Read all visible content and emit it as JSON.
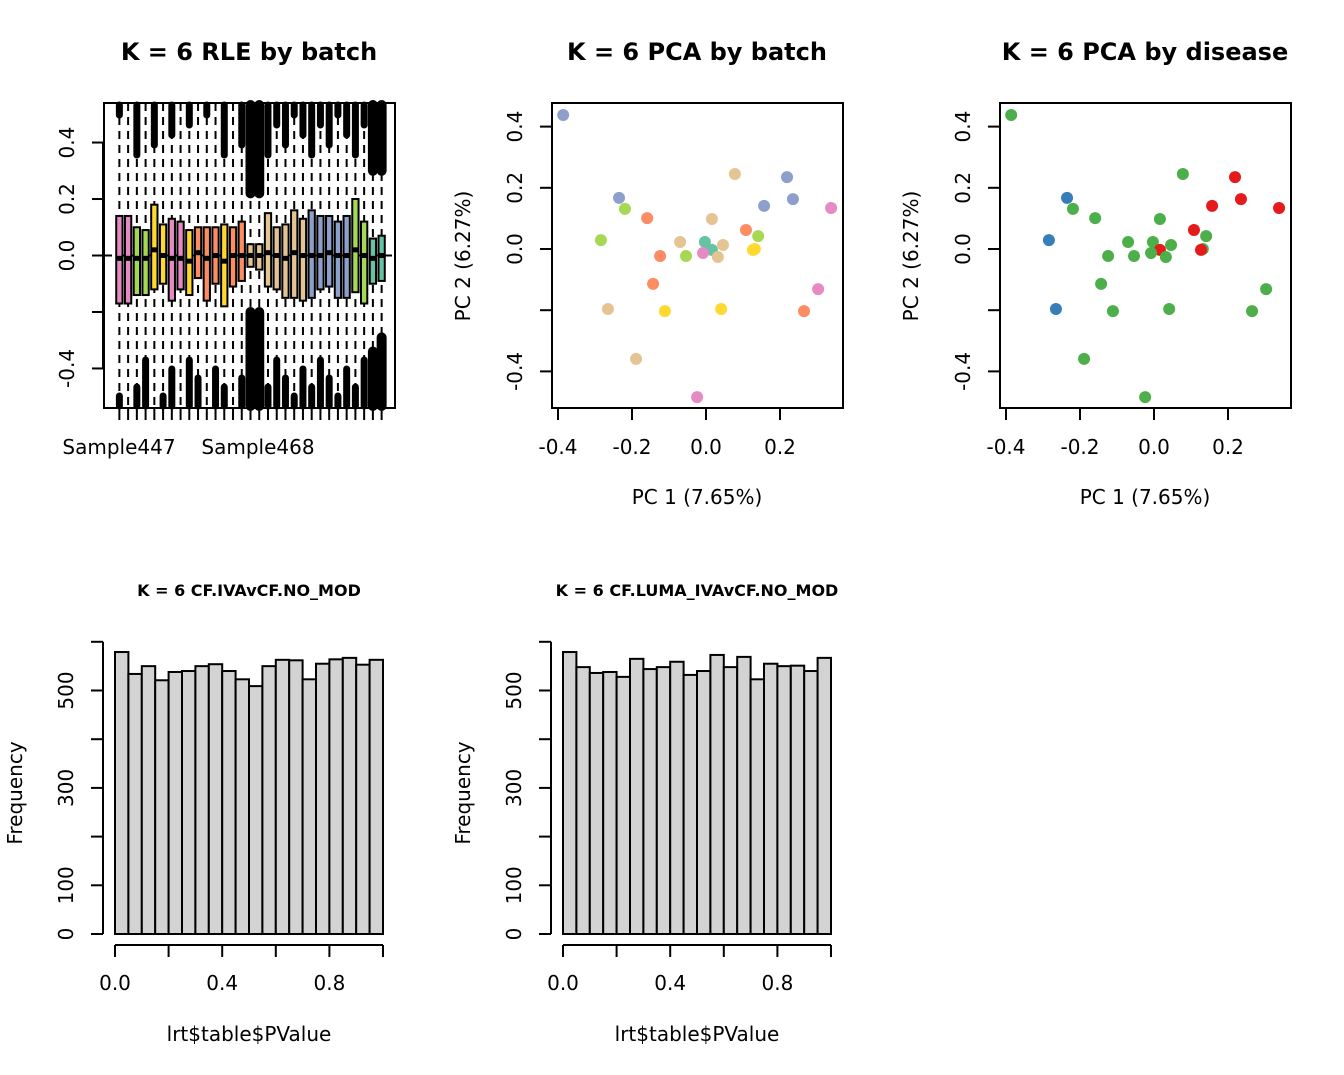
{
  "chart_data": [
    {
      "type": "boxplot",
      "title": "K = 6 RLE by batch",
      "xlabel": "",
      "ylabel": "",
      "ylim": [
        -0.54,
        0.54
      ],
      "yticks": [
        -0.4,
        -0.2,
        0.0,
        0.2,
        0.4
      ],
      "ytick_labels": [
        "-0.4",
        "",
        "0.0",
        "0.2",
        "0.4"
      ],
      "xtick_labels_shown": [
        "Sample447",
        "Sample468"
      ],
      "grid": false,
      "reference_line": 0.0,
      "boxes": [
        {
          "batch": "pink",
          "q1": -0.17,
          "median": -0.01,
          "q3": 0.14
        },
        {
          "batch": "pink",
          "q1": -0.17,
          "median": -0.01,
          "q3": 0.14
        },
        {
          "batch": "green",
          "q1": -0.14,
          "median": -0.01,
          "q3": 0.1
        },
        {
          "batch": "green",
          "q1": -0.14,
          "median": -0.01,
          "q3": 0.09
        },
        {
          "batch": "yellow",
          "q1": -0.12,
          "median": 0.02,
          "q3": 0.18
        },
        {
          "batch": "yellow",
          "q1": -0.1,
          "median": 0.0,
          "q3": 0.11
        },
        {
          "batch": "pink",
          "q1": -0.16,
          "median": -0.01,
          "q3": 0.13
        },
        {
          "batch": "pink",
          "q1": -0.12,
          "median": -0.01,
          "q3": 0.12
        },
        {
          "batch": "yellow",
          "q1": -0.14,
          "median": -0.02,
          "q3": 0.09
        },
        {
          "batch": "orange",
          "q1": -0.08,
          "median": 0.01,
          "q3": 0.1
        },
        {
          "batch": "orange",
          "q1": -0.16,
          "median": -0.01,
          "q3": 0.1
        },
        {
          "batch": "orange",
          "q1": -0.1,
          "median": 0.0,
          "q3": 0.1
        },
        {
          "batch": "yellow",
          "q1": -0.18,
          "median": -0.02,
          "q3": 0.11
        },
        {
          "batch": "orange",
          "q1": -0.11,
          "median": 0.0,
          "q3": 0.1
        },
        {
          "batch": "orange",
          "q1": -0.09,
          "median": 0.0,
          "q3": 0.12
        },
        {
          "batch": "tan",
          "q1": -0.04,
          "median": 0.0,
          "q3": 0.04
        },
        {
          "batch": "tan",
          "q1": -0.05,
          "median": 0.0,
          "q3": 0.04
        },
        {
          "batch": "tan",
          "q1": -0.11,
          "median": 0.01,
          "q3": 0.15
        },
        {
          "batch": "tan",
          "q1": -0.12,
          "median": 0.0,
          "q3": 0.1
        },
        {
          "batch": "tan",
          "q1": -0.15,
          "median": -0.01,
          "q3": 0.11
        },
        {
          "batch": "tan",
          "q1": -0.15,
          "median": 0.01,
          "q3": 0.16
        },
        {
          "batch": "tan",
          "q1": -0.16,
          "median": 0.0,
          "q3": 0.13
        },
        {
          "batch": "blue",
          "q1": -0.15,
          "median": 0.0,
          "q3": 0.16
        },
        {
          "batch": "blue",
          "q1": -0.12,
          "median": 0.0,
          "q3": 0.14
        },
        {
          "batch": "blue",
          "q1": -0.11,
          "median": 0.01,
          "q3": 0.14
        },
        {
          "batch": "blue",
          "q1": -0.15,
          "median": 0.0,
          "q3": 0.12
        },
        {
          "batch": "blue",
          "q1": -0.15,
          "median": 0.0,
          "q3": 0.14
        },
        {
          "batch": "green",
          "q1": -0.13,
          "median": 0.02,
          "q3": 0.2
        },
        {
          "batch": "green",
          "q1": -0.17,
          "median": 0.0,
          "q3": 0.12
        },
        {
          "batch": "teal",
          "q1": -0.1,
          "median": -0.01,
          "q3": 0.06
        },
        {
          "batch": "teal",
          "q1": -0.09,
          "median": 0.0,
          "q3": 0.07
        }
      ]
    },
    {
      "type": "scatter",
      "title": "K = 6 PCA by batch",
      "xlabel": "PC 1 (7.65%)",
      "ylabel": "PC 2 (6.27%)",
      "xlim": [
        -0.42,
        0.37
      ],
      "ylim": [
        -0.52,
        0.48
      ],
      "xticks": [
        -0.4,
        -0.2,
        0.0,
        0.2
      ],
      "yticks": [
        -0.4,
        -0.2,
        0.0,
        0.2,
        0.4
      ],
      "ytick_labels": [
        "-0.4",
        "",
        "0.0",
        "0.2",
        "0.4"
      ],
      "color_by": "batch"
    },
    {
      "type": "scatter",
      "title": "K = 6 PCA by disease",
      "xlabel": "PC 1 (7.65%)",
      "ylabel": "PC 2 (6.27%)",
      "xlim": [
        -0.42,
        0.37
      ],
      "ylim": [
        -0.52,
        0.48
      ],
      "xticks": [
        -0.4,
        -0.2,
        0.0,
        0.2
      ],
      "yticks": [
        -0.4,
        -0.2,
        0.0,
        0.2,
        0.4
      ],
      "ytick_labels": [
        "-0.4",
        "",
        "0.0",
        "0.2",
        "0.4"
      ],
      "color_by": "disease"
    },
    {
      "type": "bar",
      "subtype": "histogram",
      "title": "K = 6 CF.IVAvCF.NO_MOD",
      "xlabel": "lrt$table$PValue",
      "ylabel": "Frequency",
      "xlim": [
        0,
        1
      ],
      "ylim": [
        0,
        600
      ],
      "xticks": [
        0.0,
        0.2,
        0.4,
        0.6,
        0.8,
        1.0
      ],
      "xtick_labels": [
        "0.0",
        "",
        "0.4",
        "",
        "0.8",
        ""
      ],
      "yticks": [
        0,
        100,
        200,
        300,
        400,
        500,
        600
      ],
      "ytick_labels": [
        "0",
        "100",
        "",
        "300",
        "",
        "500",
        ""
      ],
      "bin_width": 0.05,
      "values": [
        579,
        534,
        550,
        521,
        538,
        540,
        550,
        554,
        540,
        523,
        509,
        550,
        563,
        562,
        523,
        555,
        564,
        567,
        553,
        563
      ]
    },
    {
      "type": "bar",
      "subtype": "histogram",
      "title": "K = 6 CF.LUMA_IVAvCF.NO_MOD",
      "xlabel": "lrt$table$PValue",
      "ylabel": "Frequency",
      "xlim": [
        0,
        1
      ],
      "ylim": [
        0,
        600
      ],
      "xticks": [
        0.0,
        0.2,
        0.4,
        0.6,
        0.8,
        1.0
      ],
      "xtick_labels": [
        "0.0",
        "",
        "0.4",
        "",
        "0.8",
        ""
      ],
      "yticks": [
        0,
        100,
        200,
        300,
        400,
        500,
        600
      ],
      "ytick_labels": [
        "0",
        "100",
        "",
        "300",
        "",
        "500",
        ""
      ],
      "bin_width": 0.05,
      "values": [
        579,
        548,
        536,
        538,
        528,
        565,
        544,
        548,
        559,
        532,
        540,
        573,
        548,
        569,
        523,
        555,
        550,
        551,
        540,
        567
      ]
    }
  ],
  "samples": [
    {
      "pc1": -0.386,
      "pc2": 0.438,
      "batch": "blue",
      "disease": "green"
    },
    {
      "pc1": -0.235,
      "pc2": 0.167,
      "batch": "blue",
      "disease": "blue"
    },
    {
      "pc1": -0.219,
      "pc2": 0.131,
      "batch": "green",
      "disease": "green"
    },
    {
      "pc1": -0.159,
      "pc2": 0.101,
      "batch": "orange",
      "disease": "green"
    },
    {
      "pc1": -0.284,
      "pc2": 0.029,
      "batch": "green",
      "disease": "blue"
    },
    {
      "pc1": -0.124,
      "pc2": -0.023,
      "batch": "orange",
      "disease": "green"
    },
    {
      "pc1": -0.054,
      "pc2": -0.023,
      "batch": "green",
      "disease": "green"
    },
    {
      "pc1": -0.07,
      "pc2": 0.023,
      "batch": "tan",
      "disease": "green"
    },
    {
      "pc1": -0.003,
      "pc2": 0.023,
      "batch": "teal",
      "disease": "green"
    },
    {
      "pc1": 0.016,
      "pc2": -0.003,
      "batch": "teal",
      "disease": "red"
    },
    {
      "pc1": -0.008,
      "pc2": -0.013,
      "batch": "pink",
      "disease": "green"
    },
    {
      "pc1": 0.032,
      "pc2": -0.026,
      "batch": "tan",
      "disease": "green"
    },
    {
      "pc1": 0.046,
      "pc2": 0.013,
      "batch": "tan",
      "disease": "green"
    },
    {
      "pc1": 0.016,
      "pc2": 0.098,
      "batch": "tan",
      "disease": "green"
    },
    {
      "pc1": 0.078,
      "pc2": 0.245,
      "batch": "tan",
      "disease": "green"
    },
    {
      "pc1": 0.108,
      "pc2": 0.062,
      "batch": "orange",
      "disease": "red"
    },
    {
      "pc1": 0.141,
      "pc2": 0.042,
      "batch": "green",
      "disease": "green"
    },
    {
      "pc1": 0.132,
      "pc2": 0.0,
      "batch": "yellow",
      "disease": "green"
    },
    {
      "pc1": 0.127,
      "pc2": -0.003,
      "batch": "yellow",
      "disease": "red"
    },
    {
      "pc1": 0.157,
      "pc2": 0.141,
      "batch": "blue",
      "disease": "red"
    },
    {
      "pc1": 0.219,
      "pc2": 0.235,
      "batch": "blue",
      "disease": "red"
    },
    {
      "pc1": 0.235,
      "pc2": 0.163,
      "batch": "blue",
      "disease": "red"
    },
    {
      "pc1": 0.338,
      "pc2": 0.134,
      "batch": "pink",
      "disease": "red"
    },
    {
      "pc1": -0.143,
      "pc2": -0.114,
      "batch": "orange",
      "disease": "green"
    },
    {
      "pc1": -0.265,
      "pc2": -0.196,
      "batch": "tan",
      "disease": "blue"
    },
    {
      "pc1": -0.111,
      "pc2": -0.203,
      "batch": "yellow",
      "disease": "green"
    },
    {
      "pc1": 0.041,
      "pc2": -0.196,
      "batch": "yellow",
      "disease": "green"
    },
    {
      "pc1": 0.303,
      "pc2": -0.131,
      "batch": "pink",
      "disease": "green"
    },
    {
      "pc1": 0.265,
      "pc2": -0.203,
      "batch": "orange",
      "disease": "green"
    },
    {
      "pc1": -0.189,
      "pc2": -0.359,
      "batch": "tan",
      "disease": "green"
    },
    {
      "pc1": -0.024,
      "pc2": -0.484,
      "batch": "pink",
      "disease": "green"
    }
  ],
  "palettes": {
    "batch": {
      "pink": "#E78AC3",
      "green": "#A6D854",
      "yellow": "#FFD92F",
      "orange": "#FC8D62",
      "tan": "#E5C494",
      "blue": "#8DA0CB",
      "teal": "#66C2A5"
    },
    "disease": {
      "red": "#E41A1C",
      "blue": "#377EB8",
      "green": "#4DAF4A"
    },
    "histogram_fill": "#D3D3D3"
  }
}
